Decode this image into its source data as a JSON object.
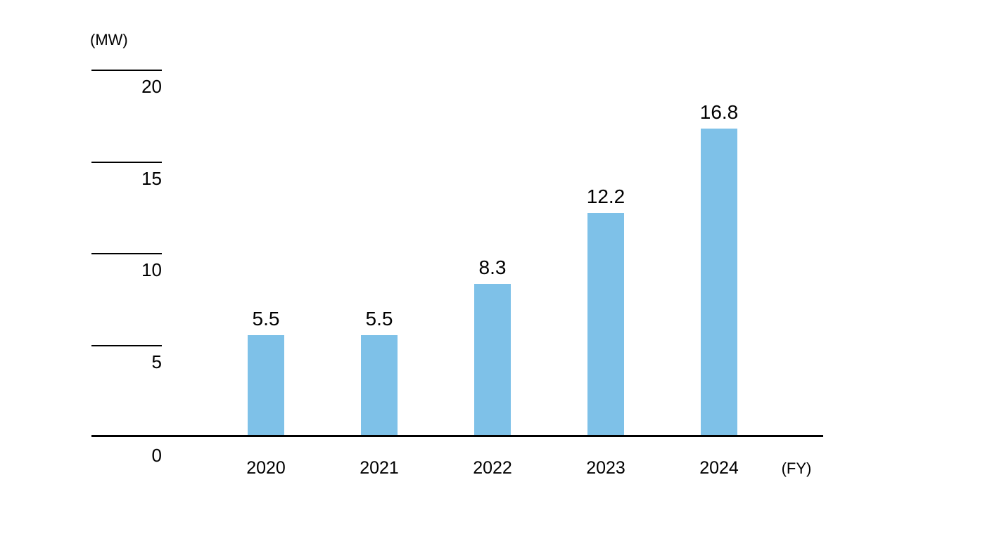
{
  "chart_data": {
    "type": "bar",
    "title": "",
    "unit_label": "(MW)",
    "x_unit_label": "(FY)",
    "xlabel": "FY",
    "ylabel": "MW",
    "categories": [
      "2020",
      "2021",
      "2022",
      "2023",
      "2024"
    ],
    "values": [
      5.5,
      5.5,
      8.3,
      12.2,
      16.8
    ],
    "value_labels": [
      "5.5",
      "5.5",
      "8.3",
      "12.2",
      "16.8"
    ],
    "yticks": [
      0,
      5,
      10,
      15,
      20
    ],
    "ylim": [
      0,
      20
    ],
    "grid": "off",
    "legend": "none",
    "bar_color": "#7EC1E8",
    "axis_color": "#000000",
    "text_color": "#000000"
  }
}
